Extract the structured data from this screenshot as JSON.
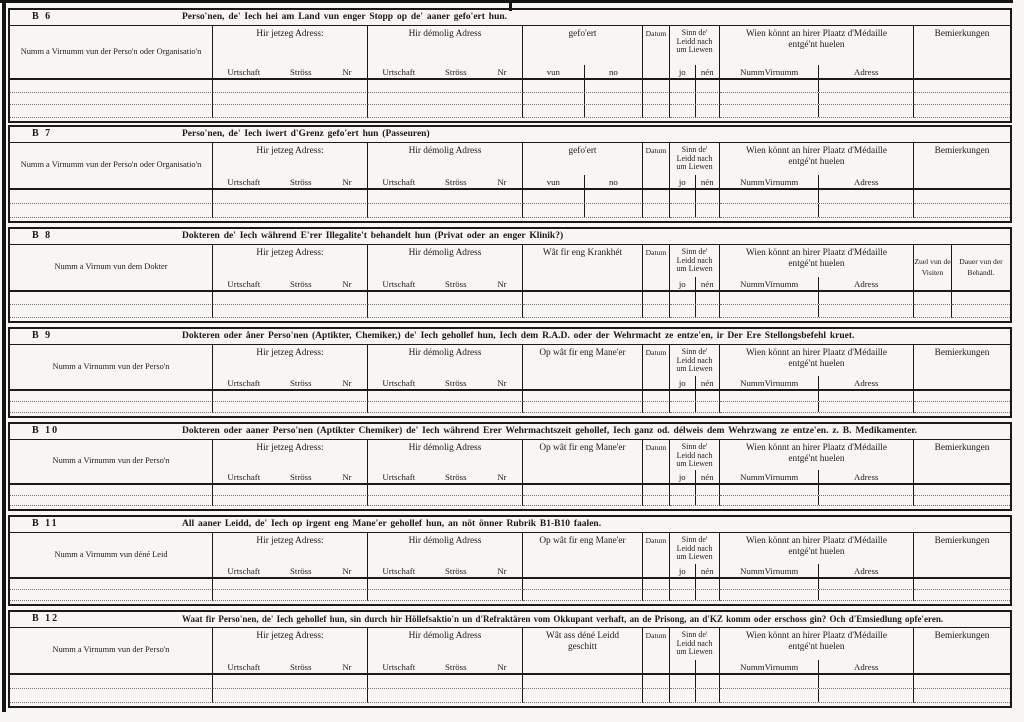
{
  "page": {
    "colors": {
      "ink": "#1b1a17",
      "paper": "#f7f6f2",
      "dotted_line": "#73726b"
    }
  },
  "common": {
    "jetzeg_label": "Hir jetzeg Adress:",
    "demolig_label": "Hir démolig Adress",
    "adr_subs": [
      "Urtschaft",
      "Ströss",
      "Nr"
    ],
    "datum_label": "Datum",
    "sinn_lines": [
      "Sinn de'",
      "Leidd nach",
      "um Liewen"
    ],
    "medaille_lines": [
      "Wien könnt an hirer Plaatz d'Médaille",
      "entgé'nt huelen"
    ],
    "medaille_subs": [
      "Numm",
      "Virnumm",
      "Adress"
    ],
    "bemierkungen_label": "Bemierkungen"
  },
  "sections": [
    {
      "id": "b6",
      "code": "B 6",
      "title": "Perso'nen, de' Iech hei am Land vun enger Stopp op de' aaner gefo'ert hun.",
      "name_label": "Numm a Virnumm vun der Perso'n oder Organisatio'n",
      "col4_lines": [
        "gefo'ert"
      ],
      "col4_subs": [
        "vun",
        "no"
      ],
      "sinn_subs": [
        "jo",
        "nén"
      ]
    },
    {
      "id": "b7",
      "code": "B 7",
      "title": "Perso'nen, de' Iech iwert d'Grenz gefo'ert hun (Passeuren)",
      "name_label": "Numm a Virnumm vun der Perso'n oder Organisatio'n",
      "col4_lines": [
        "gefo'ert"
      ],
      "col4_subs": [
        "vun",
        "no"
      ],
      "sinn_subs": [
        "jo",
        "nén"
      ]
    },
    {
      "id": "b8",
      "code": "B 8",
      "title": "Dokteren de' Iech während E'rer Illegalite't behandelt hun (Privat oder an enger Klinik?)",
      "name_label": "Numm a Virnum vun dem Dokter",
      "col4_lines": [
        "Wât fir eng Krankhét"
      ],
      "sinn_subs": [
        "jo",
        "nén"
      ],
      "tail_labels": [
        "Zuel vun de Visiten",
        "Dauer vun der Behandl."
      ]
    },
    {
      "id": "b9",
      "code": "B 9",
      "title": "Dokteren oder åner Perso'nen (Aptikter, Chemiker,) de' Iech gehollef hun, Iech dem R.A.D. oder der Wehrmacht ze entze'en, ir Der Ere Stellongsbefehl kruet.",
      "name_label": "Numm a Virnumm vun der Perso'n",
      "col4_lines": [
        "Op wât fir eng Mane'er"
      ],
      "sinn_subs": [
        "jo",
        "nén"
      ]
    },
    {
      "id": "b10",
      "code": "B 10",
      "title": "Dokteren oder aaner Perso'nen (Aptikter Chemiker) de' Iech während Erer Wehrmachtszeit gehollef, Iech ganz od. délweis dem Wehrzwang ze entze'en. z. B. Medikamenter.",
      "name_label": "Numm a Virnumm vun der Perso'n",
      "col4_lines": [
        "Op wât fir eng Mane'er"
      ],
      "sinn_subs": [
        "jo",
        "nén"
      ]
    },
    {
      "id": "b11",
      "code": "B 11",
      "title": "All aaner Leidd, de' Iech op irgent eng Mane'er gehollef hun, an nöt önner Rubrik B1-B10 faalen.",
      "name_label": "Numm a Virnumm vun déné Leid",
      "col4_lines": [
        "Op wât fir eng Mane'er"
      ],
      "sinn_subs": [
        "jo",
        "nén"
      ]
    },
    {
      "id": "b12",
      "code": "B 12",
      "title": "Waat fir Perso'nen, de' Iech gehollef hun, sin durch hir Höllefsaktio'n un d'Refraktären vom Okkupant verhaft, an de Prisong, an d'KZ komm oder erschoss gin? Och d'Emsiedlung opfe'eren.",
      "name_label": "Numm a Virnumm vun der Perso'n",
      "col4_lines": [
        "Wât ass déné Leidd",
        "geschitt"
      ],
      "sinn_subs": [
        "",
        ""
      ]
    }
  ]
}
